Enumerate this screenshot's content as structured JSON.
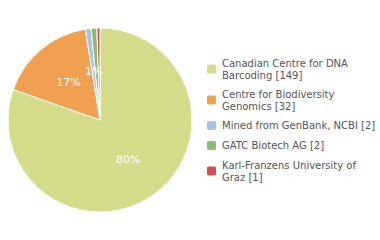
{
  "chart_data": {
    "type": "pie",
    "categories": [
      "Canadian Centre for DNA\nBarcoding [149]",
      "Centre for Biodiversity\nGenomics [32]",
      "Mined from GenBank, NCBI [2]",
      "GATC Biotech AG [2]",
      "Karl-Franzens University of\nGraz [1]"
    ],
    "values": [
      80,
      17,
      1,
      1,
      0.5376344086021505
    ],
    "value_labels": [
      "80%",
      "17%",
      "1%",
      "1%",
      null
    ],
    "colors": [
      "#d4dc8a",
      "#f0a050",
      "#a8c4e0",
      "#8cba70",
      "#d45050"
    ],
    "legend": "right"
  }
}
